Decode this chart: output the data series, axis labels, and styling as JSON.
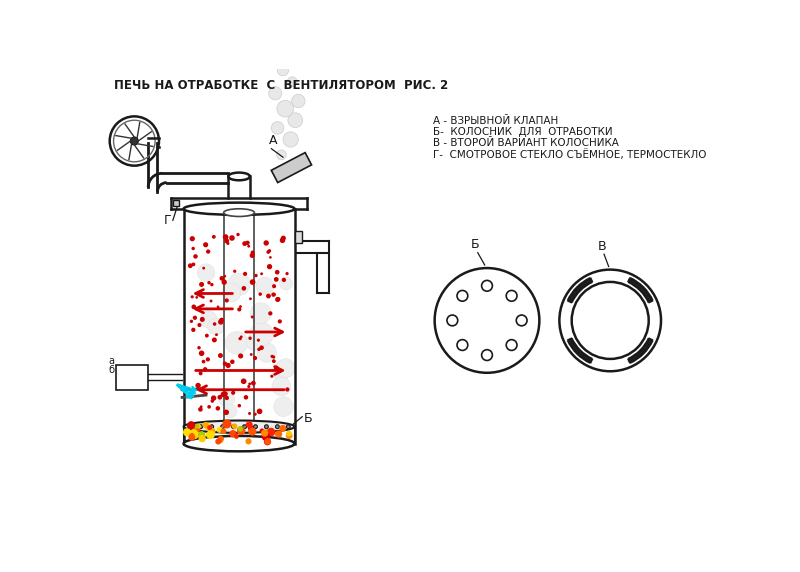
{
  "title": "ПЕЧЬ НА ОТРАБОТКЕ  С  ВЕНТИЛЯТОРОМ  РИС. 2",
  "legend_lines": [
    "А - ВЗРЫВНОЙ КЛАПАН",
    "Б-  КОЛОСНИК  ДЛЯ  ОТРАБОТКИ",
    "В - ВТОРОЙ ВАРИАНТ КОЛОСНИКА",
    "Г-  СМОТРОВОЕ СТЕКЛО СЪЁМНОЕ, ТЕРМОСТЕКЛО"
  ],
  "bg_color": "#ffffff",
  "line_color": "#1a1a1a",
  "red_color": "#cc0000",
  "blue_color": "#00ccee",
  "gray_smoke": "#cccccc"
}
